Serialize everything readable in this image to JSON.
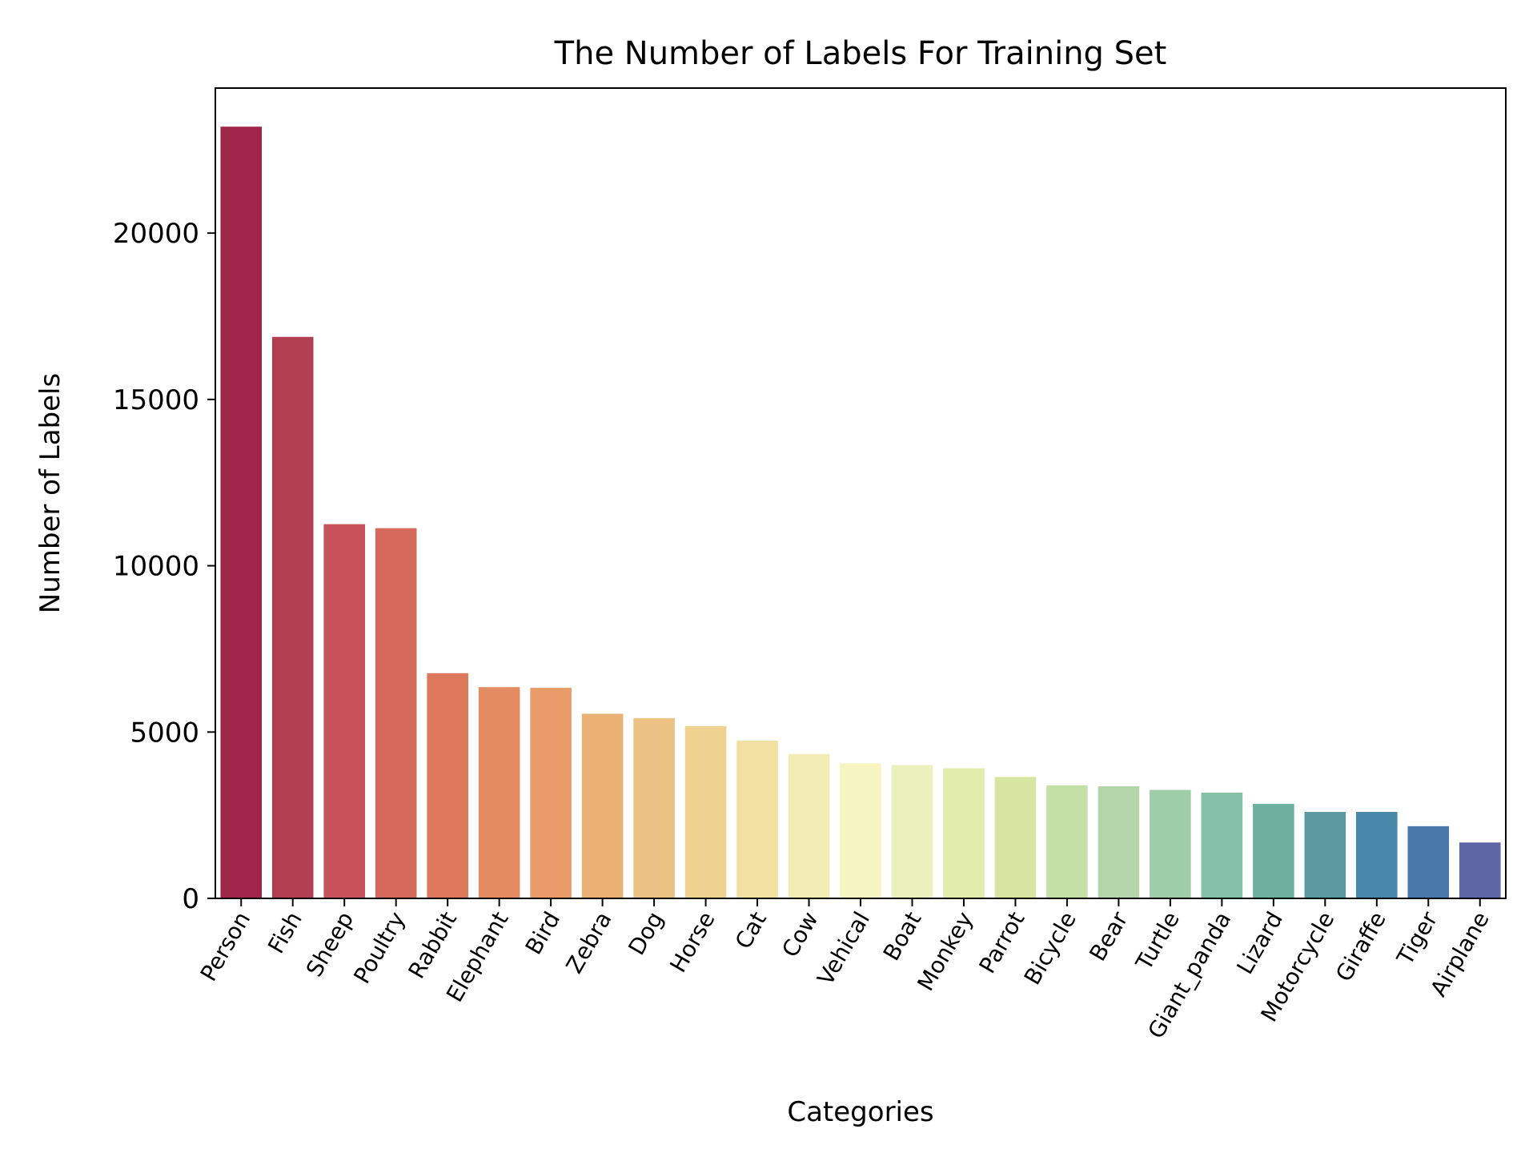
{
  "chart_data": {
    "type": "bar",
    "title": "The Number of Labels For Training Set",
    "xlabel": "Categories",
    "ylabel": "Number of Labels",
    "categories": [
      "Person",
      "Fish",
      "Sheep",
      "Poultry",
      "Rabbit",
      "Elephant",
      "Bird",
      "Zebra",
      "Dog",
      "Horse",
      "Cat",
      "Cow",
      "Vehical",
      "Boat",
      "Monkey",
      "Parrot",
      "Bicycle",
      "Bear",
      "Turtle",
      "Giant_panda",
      "Lizard",
      "Motorcycle",
      "Giraffe",
      "Tiger",
      "Airplane"
    ],
    "values": [
      23200,
      16880,
      11250,
      11130,
      6770,
      6350,
      6330,
      5550,
      5420,
      5180,
      4740,
      4340,
      4060,
      4010,
      3910,
      3650,
      3400,
      3370,
      3260,
      3180,
      2840,
      2600,
      2600,
      2170,
      1680
    ],
    "colors": [
      "#9e2649",
      "#b23e52",
      "#c75259",
      "#d4695c",
      "#de785c",
      "#e58b62",
      "#e89c6a",
      "#ebb073",
      "#ecc284",
      "#efd190",
      "#f1e0a0",
      "#f2ebb4",
      "#f6f5c2",
      "#eaf1bc",
      "#e2ecac",
      "#d6e6a1",
      "#c5e0a6",
      "#b3d6a9",
      "#9ecda9",
      "#84c1a6",
      "#6cb09e",
      "#5a9ba1",
      "#4988a9",
      "#4a77a9",
      "#5e66a5"
    ],
    "y_ticks": [
      0,
      5000,
      10000,
      15000,
      20000
    ],
    "ylim": [
      0,
      24360
    ],
    "grid": false,
    "legend": "none"
  }
}
